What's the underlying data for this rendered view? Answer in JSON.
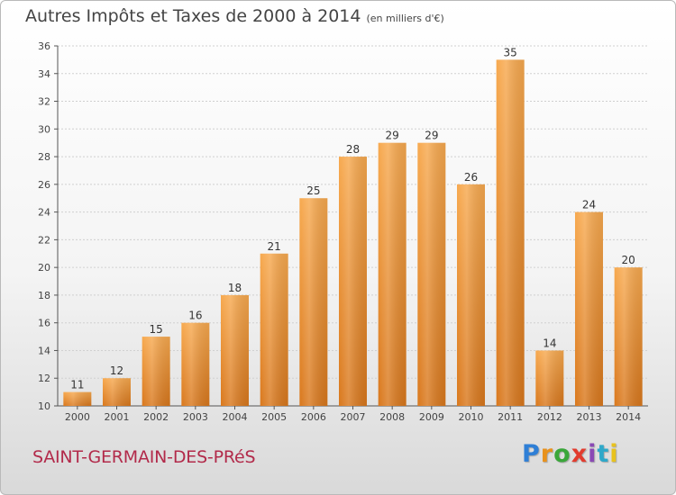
{
  "header": {
    "title": "Autres Impôts et Taxes de 2000 à 2014",
    "unit": "(en milliers d'€)"
  },
  "footer": {
    "commune": "SAINT-GERMAIN-DES-PRéS"
  },
  "logo": {
    "letters": [
      {
        "ch": "P",
        "color": "#2f7fd6"
      },
      {
        "ch": "r",
        "color": "#e8921d"
      },
      {
        "ch": "o",
        "color": "#3aa63a"
      },
      {
        "ch": "x",
        "color": "#e23b2e"
      },
      {
        "ch": "i",
        "color": "#8a49b5"
      },
      {
        "ch": "t",
        "color": "#2fa8c9"
      },
      {
        "ch": "i",
        "color": "#e8c21d"
      }
    ]
  },
  "chart_data": {
    "type": "bar",
    "title": "Autres Impôts et Taxes de 2000 à 2014",
    "categories": [
      "2000",
      "2001",
      "2002",
      "2003",
      "2004",
      "2005",
      "2006",
      "2007",
      "2008",
      "2009",
      "2010",
      "2011",
      "2012",
      "2013",
      "2014"
    ],
    "values": [
      11,
      12,
      15,
      16,
      18,
      21,
      25,
      28,
      29,
      29,
      26,
      35,
      14,
      24,
      20
    ],
    "ylim": [
      10,
      36
    ],
    "yticks": [
      10,
      12,
      14,
      16,
      18,
      20,
      22,
      24,
      26,
      28,
      30,
      32,
      34,
      36
    ],
    "grid": true,
    "bar_color": "#f39a3d"
  }
}
